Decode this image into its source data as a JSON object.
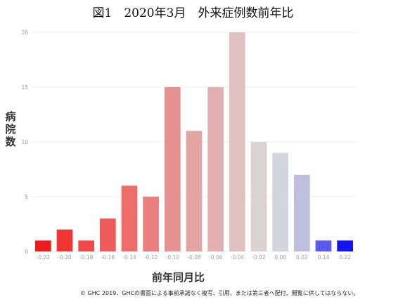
{
  "title": "図1　2020年3月　外来症例数前年比",
  "copyright": "© GHC 2019．GHCの書面による事前承諾なく複写、引用、または第三者へ配付、閲覧に供してはならない。",
  "chart_data": {
    "type": "bar",
    "xlabel": "前年同月比",
    "ylabel": "病院数",
    "ylim": [
      0,
      20
    ],
    "yticks": [
      "0",
      "5",
      "10",
      "15",
      "20"
    ],
    "grid": true,
    "legend": "none",
    "categories": [
      "-0.22",
      "-0.20",
      "-0.18",
      "-0.16",
      "-0.14",
      "-0.12",
      "-0.10",
      "-0.08",
      "-0.06",
      "-0.04",
      "-0.02",
      "0.00",
      "0.02",
      "0.14",
      "0.22"
    ],
    "values": [
      1,
      2,
      1,
      3,
      6,
      5,
      15,
      11,
      15,
      20,
      10,
      9,
      7,
      1,
      1
    ],
    "colors": [
      "#ee1c1c",
      "#f03434",
      "#f04848",
      "#ef5a5a",
      "#ee6c6c",
      "#ec7e7e",
      "#e69292",
      "#e4a4a4",
      "#e2b0b0",
      "#e0c0c0",
      "#dbd3d3",
      "#d2d4de",
      "#bebede",
      "#5a5af0",
      "#1414f0"
    ]
  }
}
